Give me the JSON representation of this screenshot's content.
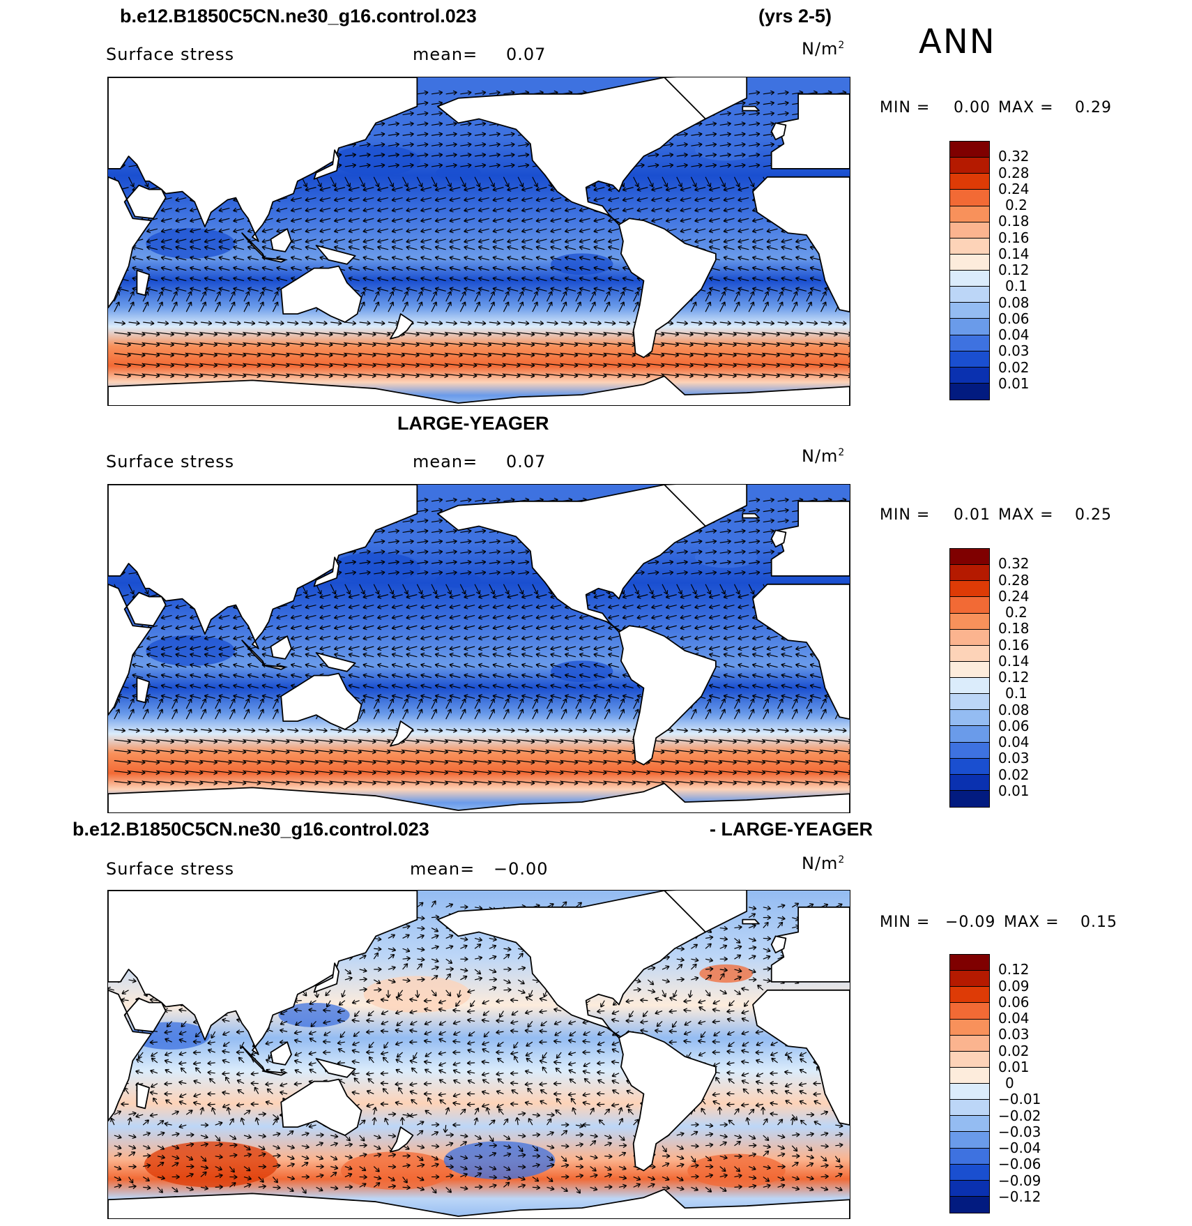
{
  "season": "ANN",
  "panels": [
    {
      "id": "model",
      "title_left": "b.e12.B1850C5CN.ne30_g16.control.023",
      "title_right": "(yrs 2-5)",
      "field": "Surface stress",
      "mean_label": "mean=",
      "mean_value": "0.07",
      "units_base": "N/m",
      "units_exp": "2",
      "min_label": "MIN =",
      "min_value": "0.00",
      "max_label": "MAX =",
      "max_value": "0.29",
      "colorbar_labels": [
        "0.32",
        "0.28",
        "0.24",
        "0.2",
        "0.18",
        "0.16",
        "0.14",
        "0.12",
        "0.1",
        "0.08",
        "0.06",
        "0.04",
        "0.03",
        "0.02",
        "0.01"
      ],
      "colorbar_colors": [
        "#7f0000",
        "#b51a00",
        "#de3b06",
        "#f26a35",
        "#f8915b",
        "#fbb48f",
        "#fdd3b8",
        "#fdecdc",
        "#dbecfb",
        "#bcd6f7",
        "#94bcf2",
        "#6a9bea",
        "#3e72e0",
        "#1a4fd0",
        "#0a31b0",
        "#021b80"
      ]
    },
    {
      "id": "obs",
      "title_center": "LARGE-YEAGER",
      "field": "Surface stress",
      "mean_label": "mean=",
      "mean_value": "0.07",
      "units_base": "N/m",
      "units_exp": "2",
      "min_label": "MIN =",
      "min_value": "0.01",
      "max_label": "MAX =",
      "max_value": "0.25",
      "colorbar_labels": [
        "0.32",
        "0.28",
        "0.24",
        "0.2",
        "0.18",
        "0.16",
        "0.14",
        "0.12",
        "0.1",
        "0.08",
        "0.06",
        "0.04",
        "0.03",
        "0.02",
        "0.01"
      ],
      "colorbar_colors": [
        "#7f0000",
        "#b51a00",
        "#de3b06",
        "#f26a35",
        "#f8915b",
        "#fbb48f",
        "#fdd3b8",
        "#fdecdc",
        "#dbecfb",
        "#bcd6f7",
        "#94bcf2",
        "#6a9bea",
        "#3e72e0",
        "#1a4fd0",
        "#0a31b0",
        "#021b80"
      ]
    },
    {
      "id": "diff",
      "title_left": "b.e12.B1850C5CN.ne30_g16.control.023",
      "title_right": "- LARGE-YEAGER",
      "field": "Surface stress",
      "mean_label": "mean=",
      "mean_value": "−0.00",
      "units_base": "N/m",
      "units_exp": "2",
      "min_label": "MIN =",
      "min_value": "−0.09",
      "max_label": "MAX =",
      "max_value": "0.15",
      "colorbar_labels": [
        "0.12",
        "0.09",
        "0.06",
        "0.04",
        "0.03",
        "0.02",
        "0.01",
        "0",
        "−0.01",
        "−0.02",
        "−0.03",
        "−0.04",
        "−0.06",
        "−0.09",
        "−0.12"
      ],
      "colorbar_colors": [
        "#7f0000",
        "#b51a00",
        "#de3b06",
        "#f26a35",
        "#f8915b",
        "#fbb48f",
        "#fdd3b8",
        "#fdecdc",
        "#dbecfb",
        "#bcd6f7",
        "#94bcf2",
        "#6a9bea",
        "#3e72e0",
        "#1a4fd0",
        "#0a31b0",
        "#021b80"
      ]
    }
  ],
  "colors": {
    "land": "#ffffff",
    "coast": "#000000",
    "arrow": "#000000"
  }
}
